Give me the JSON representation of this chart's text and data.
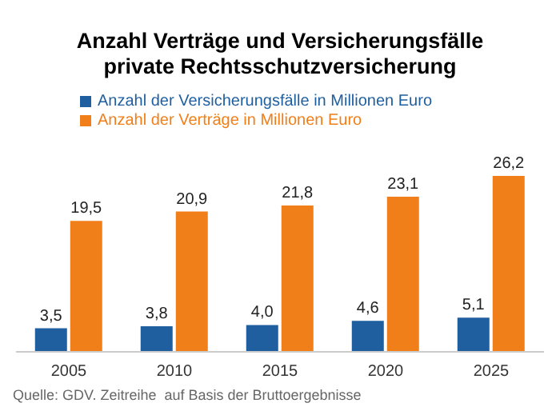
{
  "chart_data": {
    "type": "bar",
    "title": "Anzahl Verträge und Versicherungsfälle private Rechtsschutzversicherung",
    "categories": [
      "2005",
      "2010",
      "2015",
      "2020",
      "2025"
    ],
    "series": [
      {
        "name": "Anzahl der Versicherungsfälle in Millionen Euro",
        "color": "#1f5fa0",
        "values": [
          3.5,
          3.8,
          4.0,
          4.6,
          5.1
        ],
        "value_labels": [
          "3,5",
          "3,8",
          "4,0",
          "4,6",
          "5,1"
        ]
      },
      {
        "name": "Anzahl der Verträge in Millionen Euro",
        "color": "#f07f1a",
        "values": [
          19.5,
          20.9,
          21.8,
          23.1,
          26.2
        ],
        "value_labels": [
          "19,5",
          "20,9",
          "21,8",
          "23,1",
          "26,2"
        ]
      }
    ],
    "legend": "top left",
    "grid": false,
    "annotations": [
      "Quelle: GDV. Zeitreihe  auf Basis der Bruttoergebnisse"
    ]
  }
}
